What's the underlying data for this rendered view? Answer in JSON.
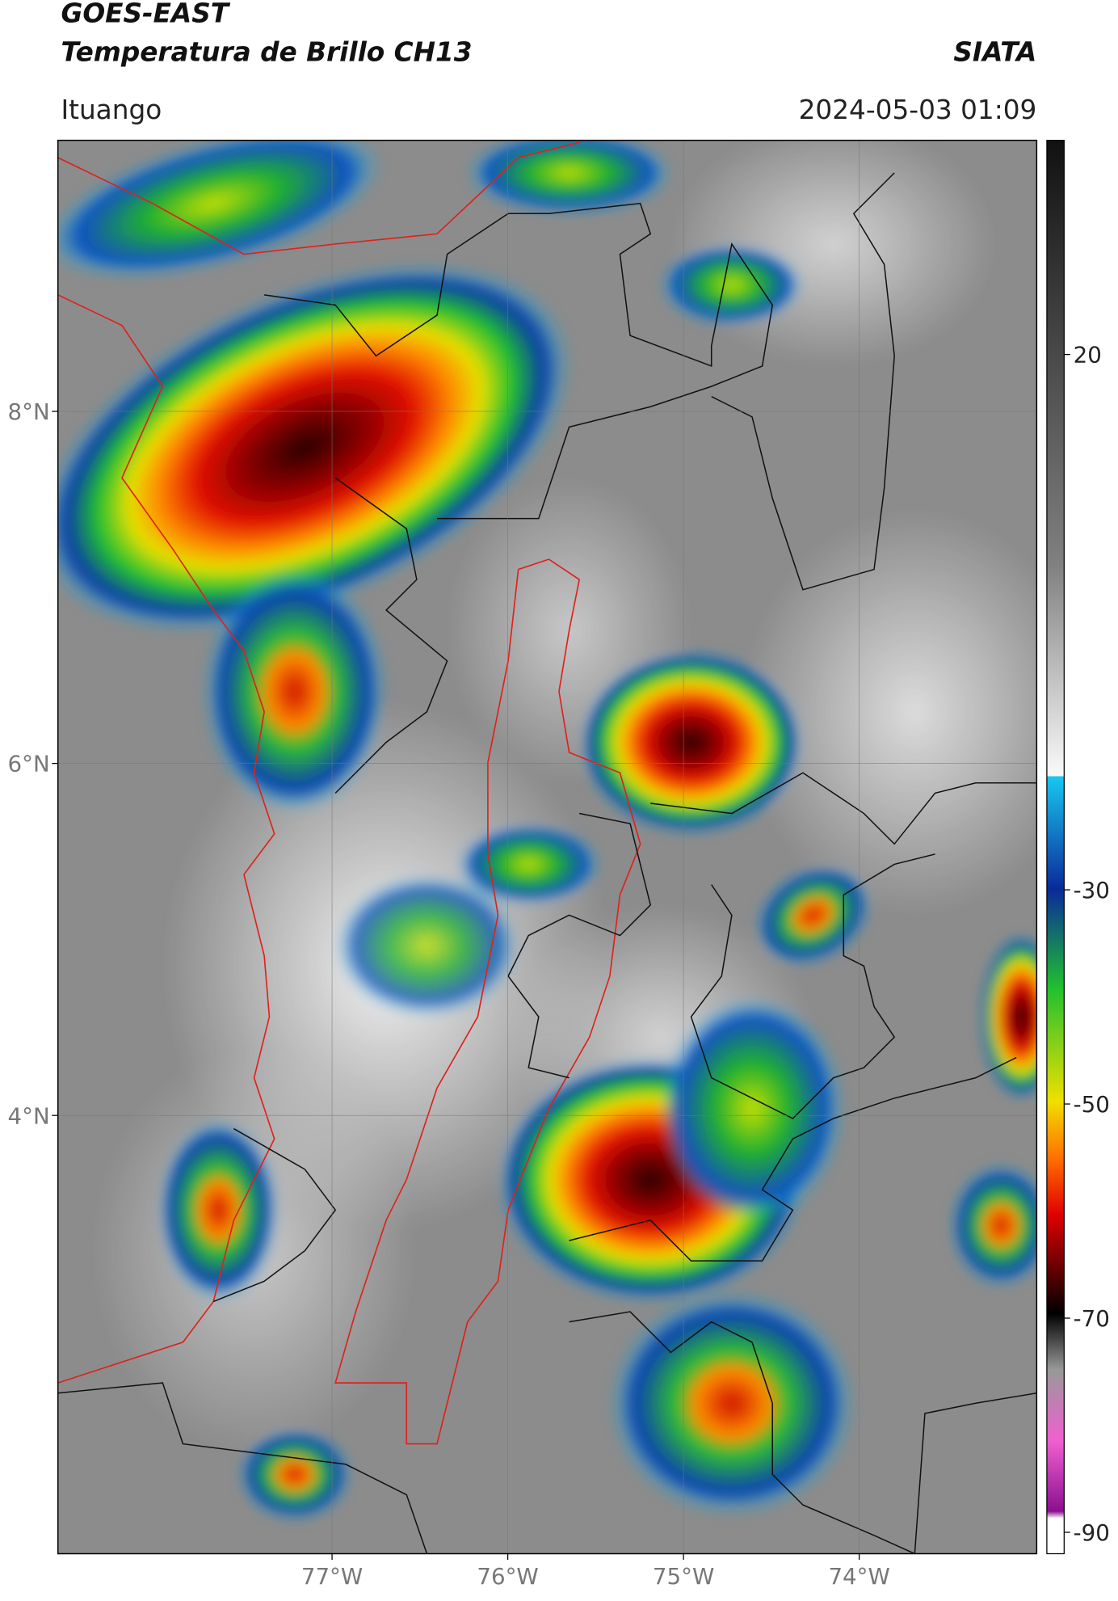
{
  "header": {
    "title": "GOES-EAST",
    "subtitle": "Temperatura de Brillo CH13",
    "source": "SIATA",
    "location": "Ituango",
    "datetime": "2024-05-03 01:09"
  },
  "map": {
    "xlim": [
      -78.56,
      -72.99
    ],
    "ylim": [
      1.51,
      9.54
    ],
    "xticks": [
      {
        "value": -77,
        "label": "77°W"
      },
      {
        "value": -76,
        "label": "76°W"
      },
      {
        "value": -75,
        "label": "75°W"
      },
      {
        "value": -74,
        "label": "74°W"
      }
    ],
    "yticks": [
      {
        "value": 8,
        "label": "8°N"
      },
      {
        "value": 6,
        "label": "6°N"
      },
      {
        "value": 4,
        "label": "4°N"
      }
    ],
    "grid": true,
    "colorbar": {
      "lim": [
        -92,
        40
      ],
      "ticks": [
        20,
        -30,
        -50,
        -70,
        -90
      ]
    }
  }
}
